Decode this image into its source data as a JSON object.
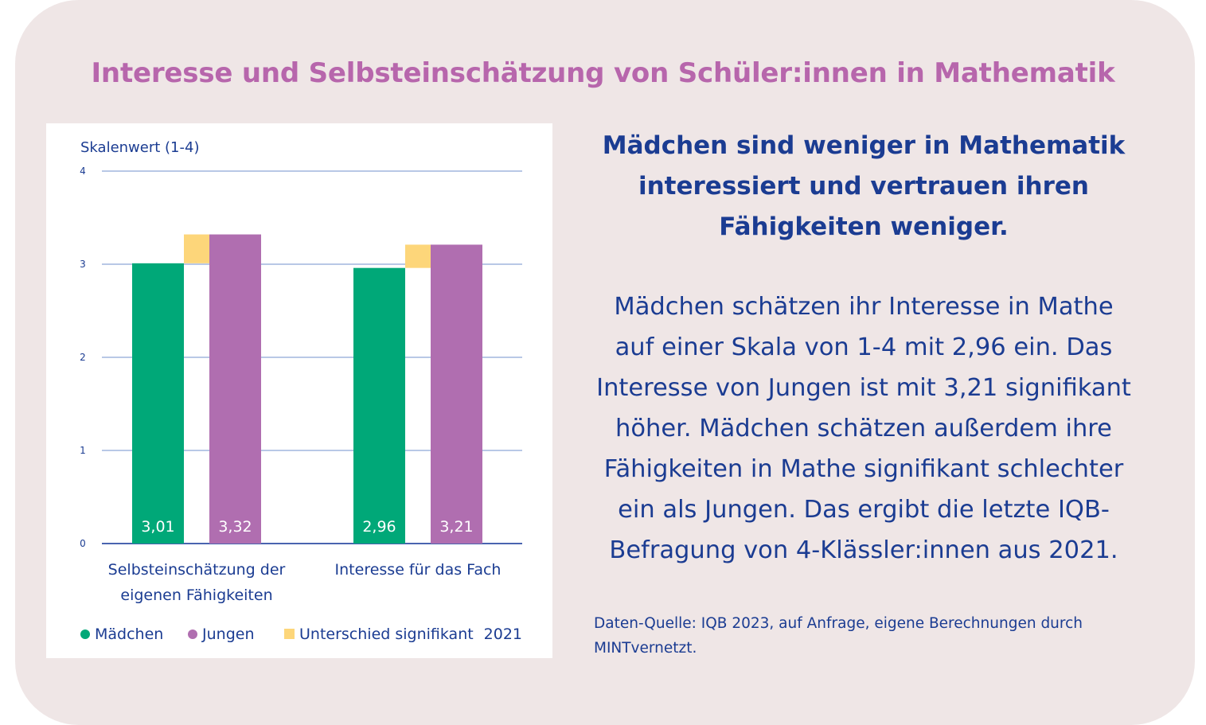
{
  "title": "Interesse und Selbsteinschätzung von Schüler:innen in Mathematik",
  "chart_data": {
    "type": "bar",
    "ylabel": "Skalenwert (1-4)",
    "ylim": [
      0,
      4
    ],
    "yticks": [
      "0",
      "1",
      "2",
      "3",
      "4"
    ],
    "categories": [
      "Selbsteinschätzung der eigenen Fähigkeiten",
      "Interesse für das Fach"
    ],
    "category_lines": [
      [
        "Selbsteinschätzung der",
        "eigenen Fähigkeiten"
      ],
      [
        "Interesse für das Fach"
      ]
    ],
    "series": [
      {
        "name": "Mädchen",
        "values": [
          3.01,
          2.96
        ],
        "labels": [
          "3,01",
          "2,96"
        ],
        "color": "#00a878"
      },
      {
        "name": "Jungen",
        "values": [
          3.32,
          3.21
        ],
        "labels": [
          "3,32",
          "3,21"
        ],
        "color": "#b06eb0"
      }
    ],
    "significance": {
      "name": "Unterschied signifikant",
      "color": "#fdd67a",
      "values": [
        true,
        true
      ]
    },
    "year": "2021",
    "grid": true,
    "legend_position": "bottom"
  },
  "right": {
    "heading_lines": [
      "Mädchen sind weniger in Mathematik",
      "interessiert und vertrauen ihren",
      "Fähigkeiten weniger."
    ],
    "body_lines": [
      "Mädchen schätzen ihr Interesse in Mathe",
      "auf einer Skala von 1-4 mit 2,96 ein. Das",
      "Interesse von Jungen ist mit 3,21 signifikant",
      "höher. Mädchen schätzen außerdem ihre",
      "Fähigkeiten in Mathe signifikant schlechter",
      "ein als Jungen. Das ergibt die letzte IQB-",
      "Befragung von 4-Klässler:innen aus 2021."
    ],
    "source_lines": [
      "Daten-Quelle: IQB 2023, auf Anfrage, eigene Berechnungen durch",
      "MINTvernetzt."
    ]
  },
  "colors": {
    "background": "#efe6e6",
    "title": "#b766ac",
    "text": "#1b3c92",
    "grid": "#8ea6d6"
  }
}
